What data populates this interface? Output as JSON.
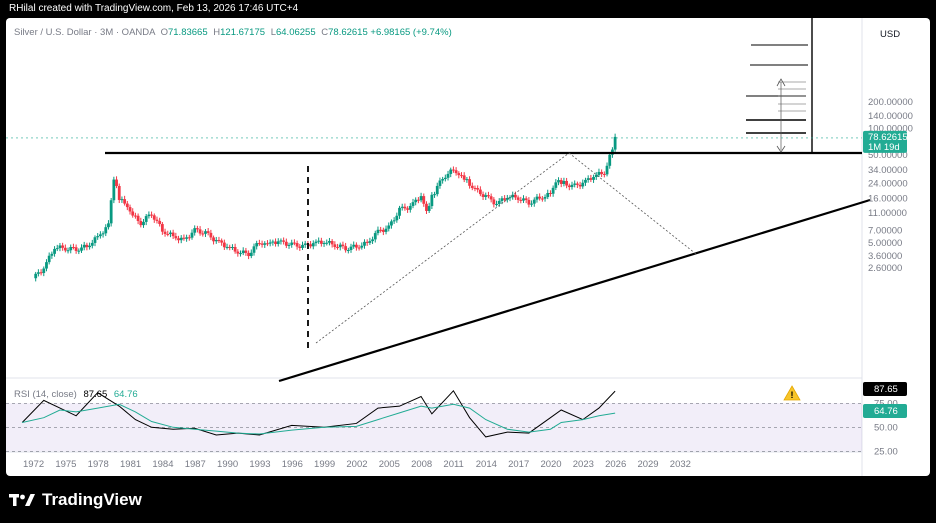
{
  "header": {
    "author_line": "RHilal created with TradingView.com, Feb 13, 2026 17:46 UTC+4"
  },
  "legend": {
    "symbol": "Silver / U.S. Dollar · 3M · OANDA",
    "open_label": "O",
    "open": "71.83665",
    "high_label": "H",
    "high": "121.67175",
    "low_label": "L",
    "low": "64.06255",
    "close_label": "C",
    "close": "78.62615",
    "change": "+6.98165 (+9.74%)"
  },
  "price_axis": {
    "currency": "USD",
    "ticks": [
      "200.00000",
      "140.00000",
      "100.00000",
      "50.00000",
      "34.00000",
      "24.00000",
      "16.00000",
      "11.00000",
      "7.00000",
      "5.00000",
      "3.60000",
      "2.60000"
    ],
    "last_price": "78.62615",
    "countdown": "1M 19d"
  },
  "rsi": {
    "label": "RSI (14, close)",
    "value": "87.65",
    "ma_value": "64.76",
    "ticks": [
      "75.00",
      "50.00",
      "25.00"
    ],
    "warning_icon": "warning-icon"
  },
  "time_axis": {
    "ticks": [
      "1972",
      "1975",
      "1978",
      "1981",
      "1984",
      "1987",
      "1990",
      "1993",
      "1996",
      "1999",
      "2002",
      "2005",
      "2008",
      "2011",
      "2014",
      "2017",
      "2020",
      "2023",
      "2026",
      "2029",
      "2032"
    ]
  },
  "colors": {
    "up": "#089981",
    "down": "#f23645",
    "rsi_line": "#000000",
    "rsi_ma": "#22ab94",
    "rsi_band": "#7e57c2",
    "price_label": "#22ab94"
  },
  "footer": {
    "brand": "TradingView"
  },
  "chart_data": {
    "type": "candlestick",
    "scale": "log",
    "interval": "3M",
    "price_range": [
      2.0,
      280
    ],
    "x_range": [
      1971,
      2033.5
    ],
    "grid": false,
    "price_series": {
      "name": "Silver / U.S. Dollar",
      "x": [
        1972,
        1973,
        1974,
        1975,
        1976,
        1977,
        1978,
        1979,
        1979.5,
        1980,
        1980.5,
        1981,
        1982,
        1983,
        1984,
        1985,
        1986,
        1987,
        1988,
        1989,
        1990,
        1991,
        1992,
        1993,
        1993.5,
        1994,
        1995,
        1996,
        1997,
        1998,
        1999,
        2000,
        2001,
        2002,
        2003,
        2004,
        2005,
        2006,
        2007,
        2008,
        2008.5,
        2009,
        2010,
        2011,
        2011.5,
        2012,
        2013,
        2014,
        2015,
        2016,
        2017,
        2018,
        2019,
        2020,
        2020.5,
        2021,
        2022,
        2023,
        2024,
        2025,
        2025.5,
        2026
      ],
      "close": [
        2.0,
        2.6,
        4.5,
        4.4,
        4.3,
        4.6,
        5.9,
        8.0,
        28,
        16,
        14,
        11,
        8.5,
        11,
        7.0,
        6.0,
        5.4,
        7.0,
        6.5,
        5.3,
        4.6,
        4.0,
        3.8,
        5.2,
        5.0,
        5.3,
        5.1,
        4.8,
        4.6,
        5.0,
        5.2,
        4.8,
        4.4,
        4.6,
        5.0,
        6.8,
        7.5,
        12.0,
        13.0,
        17.5,
        11.0,
        16.8,
        28,
        34,
        31,
        28,
        20,
        17,
        14,
        17,
        16.5,
        14.5,
        16.5,
        18,
        26,
        25,
        22,
        24,
        29,
        32,
        48,
        78.62615
      ]
    },
    "rsi_series": {
      "name": "RSI (14, close)",
      "x": [
        1971,
        1973,
        1974.5,
        1976,
        1978,
        1980,
        1981.5,
        1983,
        1985,
        1987,
        1989,
        1991,
        1993,
        1996,
        1999,
        2002,
        2004,
        2006,
        2008,
        2009,
        2011,
        2012.5,
        2014,
        2016,
        2018,
        2020,
        2021,
        2023,
        2024.5,
        2026
      ],
      "values": [
        55,
        78,
        70,
        62,
        86,
        72,
        58,
        50,
        48,
        49,
        42,
        44,
        42,
        52,
        50,
        54,
        70,
        72,
        82,
        64,
        88,
        60,
        40,
        45,
        44,
        60,
        68,
        58,
        70,
        87.65
      ]
    },
    "rsi_ma": [
      55,
      60,
      68,
      66,
      70,
      74,
      66,
      56,
      50,
      48,
      46,
      44,
      43,
      47,
      50,
      51,
      58,
      65,
      72,
      70,
      74,
      70,
      58,
      48,
      45,
      48,
      55,
      58,
      62,
      64.76
    ],
    "rsi_range": [
      20,
      100
    ],
    "rsi_overbought": 75,
    "rsi_oversold": 25
  }
}
